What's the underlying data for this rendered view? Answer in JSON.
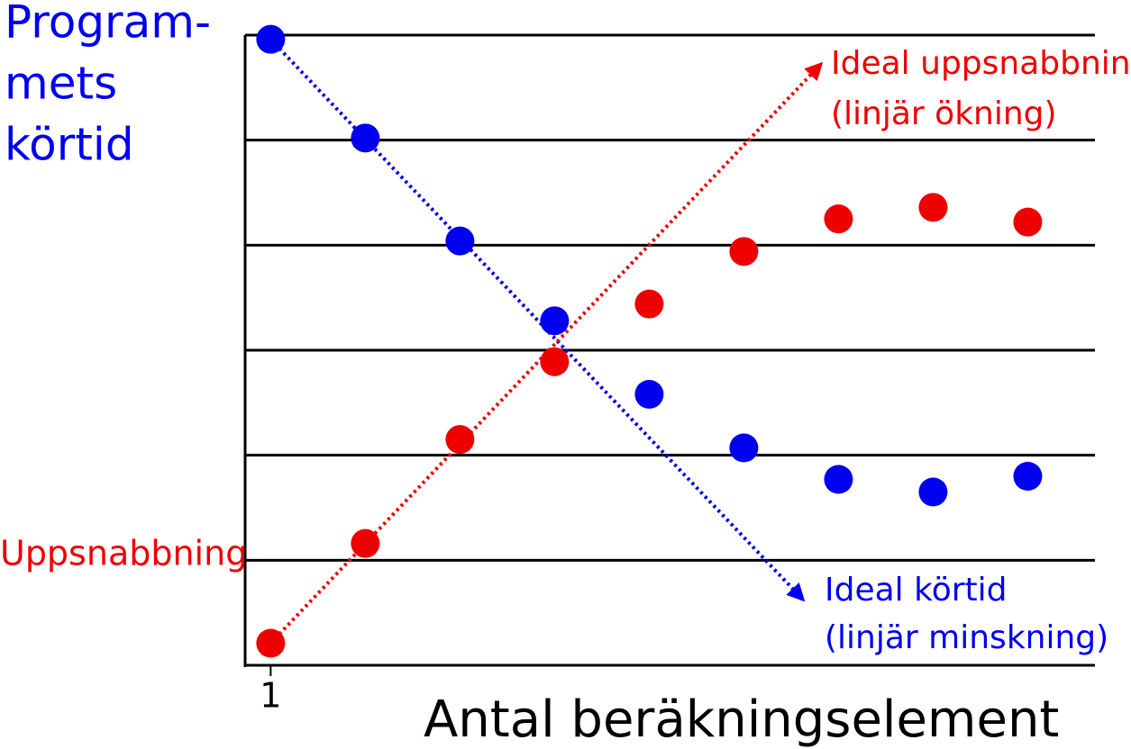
{
  "chart_data": {
    "type": "scatter",
    "x_label": "Antal beräkningselement",
    "x": [
      1,
      2,
      3,
      4,
      5,
      6,
      7,
      8,
      9
    ],
    "xlim": [
      0.73,
      9.71
    ],
    "xticks": [
      1
    ],
    "ylim": [
      0,
      6
    ],
    "ygrid": [
      1,
      2,
      3,
      4,
      5,
      6
    ],
    "series": [
      {
        "label_lines": [
          "Program-",
          "mets",
          "körtid"
        ],
        "color": "#0000ee",
        "values": [
          5.96,
          5.02,
          4.04,
          3.28,
          2.58,
          2.07,
          1.77,
          1.65,
          1.8
        ],
        "ideal": {
          "label_lines": [
            "Ideal körtid",
            "(linjär minskning)"
          ],
          "from": [
            1,
            5.96
          ],
          "to": [
            6.62,
            0.63
          ]
        }
      },
      {
        "label_lines": [
          "Uppsnabbning"
        ],
        "color": "#ee0000",
        "values": [
          0.21,
          1.16,
          2.15,
          2.89,
          3.44,
          3.94,
          4.25,
          4.36,
          4.22
        ],
        "ideal": {
          "label_lines": [
            "Ideal uppsnabbning",
            "(linjär ökning)"
          ],
          "from": [
            1,
            0.21
          ],
          "to": [
            6.81,
            5.72
          ]
        }
      }
    ]
  }
}
